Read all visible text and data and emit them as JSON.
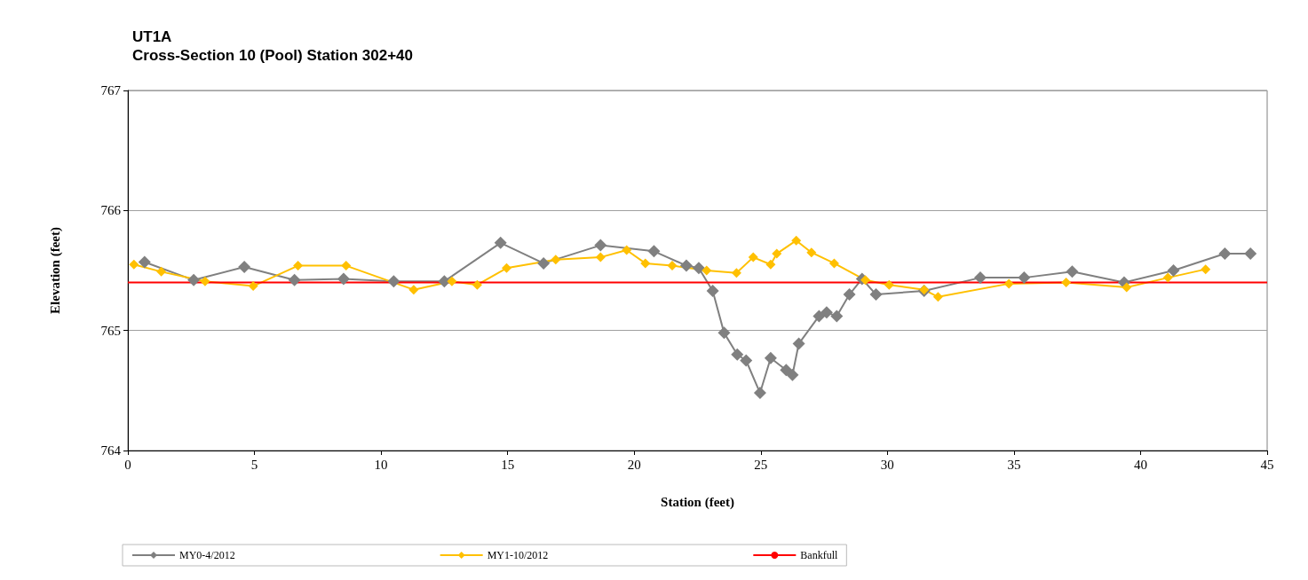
{
  "chart_data": {
    "type": "line",
    "title": "UT1A",
    "subtitle": "Cross-Section 10 (Pool) Station 302+40",
    "xlabel": "Station (feet)",
    "ylabel": "Elevation (feet)",
    "xlim": [
      0,
      45
    ],
    "xticks": [
      0,
      5,
      10,
      15,
      20,
      25,
      30,
      35,
      40,
      45
    ],
    "ylim": [
      764,
      767
    ],
    "yticks": [
      764,
      765,
      766,
      767
    ],
    "grid": "y",
    "legend": "bottom",
    "marker": "diamond",
    "line_style": "solid",
    "series": [
      {
        "name": "MY0-4/2012",
        "color": "#808080",
        "x": [
          0.66,
          2.6,
          4.6,
          6.58,
          8.52,
          10.5,
          12.5,
          14.72,
          16.42,
          18.67,
          20.78,
          22.06,
          22.55,
          23.1,
          23.55,
          24.07,
          24.42,
          24.97,
          25.39,
          26.0,
          26.25,
          26.5,
          27.3,
          27.6,
          28.0,
          28.5,
          29.0,
          29.55,
          31.45,
          33.67,
          35.4,
          37.3,
          39.35,
          41.3,
          43.33,
          44.34
        ],
        "values": [
          765.57,
          765.42,
          765.53,
          765.42,
          765.43,
          765.41,
          765.41,
          765.73,
          765.56,
          765.71,
          765.66,
          765.54,
          765.52,
          765.33,
          764.98,
          764.8,
          764.75,
          764.48,
          764.77,
          764.67,
          764.63,
          764.89,
          765.12,
          765.15,
          765.12,
          765.3,
          765.43,
          765.3,
          765.33,
          765.44,
          765.44,
          765.49,
          765.4,
          765.5,
          765.64,
          765.64
        ]
      },
      {
        "name": "MY1-10/2012",
        "color": "#ffc000",
        "x": [
          0.24,
          1.32,
          3.05,
          4.95,
          6.72,
          8.62,
          11.29,
          12.8,
          13.8,
          14.96,
          16.9,
          18.67,
          19.7,
          20.44,
          21.5,
          22.86,
          24.04,
          24.7,
          25.39,
          25.63,
          26.4,
          27.0,
          27.9,
          29.13,
          30.07,
          31.45,
          32.0,
          34.8,
          37.06,
          39.45,
          41.08,
          42.57
        ],
        "values": [
          765.55,
          765.49,
          765.41,
          765.37,
          765.54,
          765.54,
          765.34,
          765.41,
          765.38,
          765.52,
          765.59,
          765.61,
          765.67,
          765.56,
          765.54,
          765.5,
          765.48,
          765.61,
          765.55,
          765.64,
          765.75,
          765.65,
          765.56,
          765.42,
          765.38,
          765.34,
          765.28,
          765.39,
          765.4,
          765.36,
          765.44,
          765.51
        ]
      },
      {
        "name": "Bankfull",
        "color": "#ff0000",
        "marker": "none",
        "x": [
          0,
          45
        ],
        "values": [
          765.4,
          765.4
        ]
      }
    ]
  }
}
